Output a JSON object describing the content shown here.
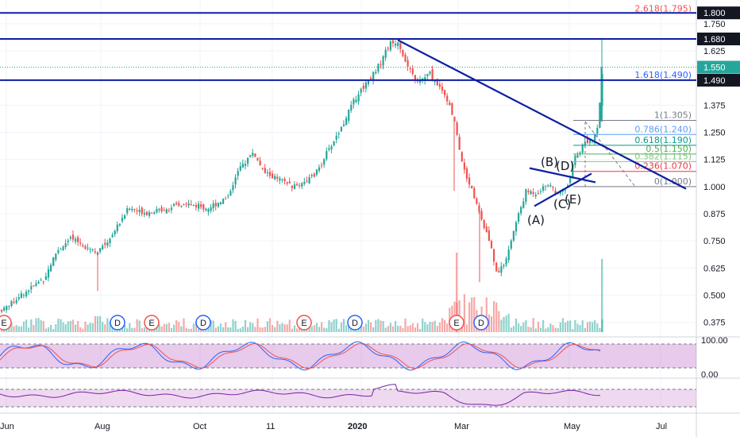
{
  "chart_data": {
    "type": "candlestick",
    "price_axis": {
      "ticks": [
        "1.750",
        "1.625",
        "1.375",
        "1.250",
        "1.125",
        "1.000",
        "0.875",
        "0.750",
        "0.625",
        "0.500",
        "0.375"
      ],
      "ylim": [
        0.33,
        1.83
      ]
    },
    "price_badges": [
      {
        "label": "1.800",
        "price": 1.8,
        "color": "#131722"
      },
      {
        "label": "1.680",
        "price": 1.68,
        "color": "#131722"
      },
      {
        "label": "1.550",
        "price": 1.55,
        "color": "#26a69a"
      },
      {
        "label": "1.490",
        "price": 1.49,
        "color": "#131722"
      }
    ],
    "horizontal_lines": [
      1.8,
      1.68,
      1.49
    ],
    "last_price": 1.55,
    "fib_levels": [
      {
        "label": "2.618(1.795)",
        "price": 1.795,
        "color": "#ef5350"
      },
      {
        "label": "1.618(1.490)",
        "price": 1.49,
        "color": "#2962ff"
      },
      {
        "label": "1(1.305)",
        "price": 1.305,
        "color": "#787b86"
      },
      {
        "label": "0.786(1.240)",
        "price": 1.24,
        "color": "#5b9cf6"
      },
      {
        "label": "0.618(1.190)",
        "price": 1.19,
        "color": "#089981"
      },
      {
        "label": "0.5(1.150)",
        "price": 1.15,
        "color": "#4caf50"
      },
      {
        "label": "0.382(1.115)",
        "price": 1.115,
        "color": "#81c784"
      },
      {
        "label": "0.236(1.070)",
        "price": 1.07,
        "color": "#f23645"
      },
      {
        "label": "0(1.000)",
        "price": 1.0,
        "color": "#787b86"
      }
    ],
    "wave_labels": [
      "(A)",
      "(B)",
      "(C)",
      "(D)",
      "(E)"
    ],
    "events": [
      "E",
      "D",
      "E",
      "D",
      "E",
      "D",
      "E",
      "D"
    ],
    "x_axis": {
      "labels": [
        "Jun",
        "Aug",
        "Oct",
        "11",
        "2020",
        "Mar",
        "May",
        "Jul"
      ],
      "bold": [
        "2020"
      ]
    },
    "stoch": {
      "ticks": [
        "100.00",
        "0.00"
      ]
    }
  }
}
